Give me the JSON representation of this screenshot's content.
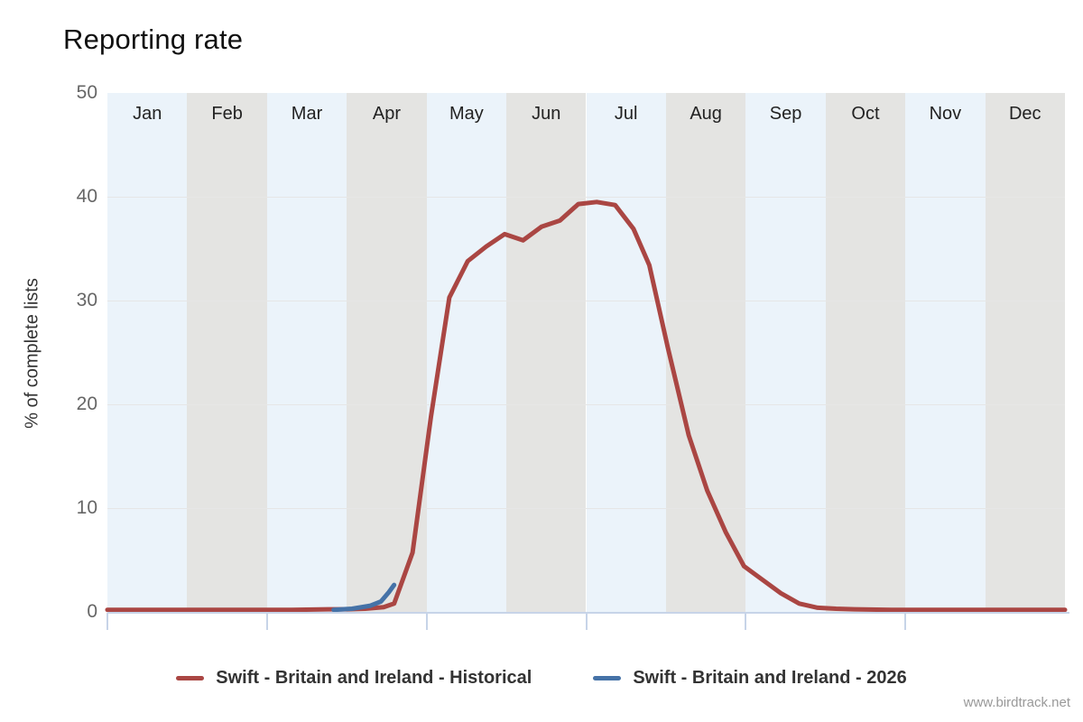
{
  "title": "Reporting rate",
  "watermark": "www.birdtrack.net",
  "y_axis": {
    "label": "% of complete lists",
    "ticks": [
      0,
      10,
      20,
      30,
      40,
      50
    ],
    "max": 50
  },
  "months": [
    "Jan",
    "Feb",
    "Mar",
    "Apr",
    "May",
    "Jun",
    "Jul",
    "Aug",
    "Sep",
    "Oct",
    "Nov",
    "Dec"
  ],
  "colors": {
    "band_blue": "#ebf3fa",
    "band_gray": "#e4e4e2",
    "gridline": "#e6e6e6",
    "axis_line": "#c7d4e8",
    "historical_series": "#AA4643",
    "current_year_series": "#4572A7"
  },
  "chart_data": {
    "type": "line",
    "title": "Reporting rate",
    "xlabel": "",
    "ylabel": "% of complete lists",
    "ylim": [
      0,
      50
    ],
    "x_unit": "day_of_year",
    "x_range": [
      0,
      364
    ],
    "x_band_categories": [
      "Jan",
      "Feb",
      "Mar",
      "Apr",
      "May",
      "Jun",
      "Jul",
      "Aug",
      "Sep",
      "Oct",
      "Nov",
      "Dec"
    ],
    "x_tick_positions_months": [
      "Jan",
      "Mar",
      "May",
      "Jul",
      "Sep",
      "Nov"
    ],
    "grid": true,
    "legend_position": "bottom",
    "series": [
      {
        "name": "Swift - Britain and Ireland - Historical",
        "color": "#AA4643",
        "points": [
          [
            0,
            0.2
          ],
          [
            14,
            0.2
          ],
          [
            28,
            0.2
          ],
          [
            42,
            0.2
          ],
          [
            56,
            0.2
          ],
          [
            70,
            0.2
          ],
          [
            84,
            0.25
          ],
          [
            91,
            0.25
          ],
          [
            98,
            0.3
          ],
          [
            105,
            0.45
          ],
          [
            109,
            0.8
          ],
          [
            116,
            5.7
          ],
          [
            123,
            18.8
          ],
          [
            130,
            30.3
          ],
          [
            137,
            33.8
          ],
          [
            144,
            35.2
          ],
          [
            151,
            36.4
          ],
          [
            158,
            35.8
          ],
          [
            165,
            37.1
          ],
          [
            172,
            37.7
          ],
          [
            179,
            39.3
          ],
          [
            186,
            39.5
          ],
          [
            193,
            39.2
          ],
          [
            200,
            36.9
          ],
          [
            206,
            33.4
          ],
          [
            213,
            25.5
          ],
          [
            221,
            17.0
          ],
          [
            228,
            11.7
          ],
          [
            235,
            7.7
          ],
          [
            242,
            4.4
          ],
          [
            249,
            3.1
          ],
          [
            256,
            1.8
          ],
          [
            263,
            0.8
          ],
          [
            270,
            0.4
          ],
          [
            277,
            0.3
          ],
          [
            284,
            0.25
          ],
          [
            298,
            0.2
          ],
          [
            312,
            0.2
          ],
          [
            326,
            0.2
          ],
          [
            340,
            0.2
          ],
          [
            354,
            0.2
          ],
          [
            364,
            0.2
          ]
        ]
      },
      {
        "name": "Swift - Britain and Ireland - 2026",
        "color": "#4572A7",
        "points": [
          [
            86,
            0.2
          ],
          [
            93,
            0.3
          ],
          [
            100,
            0.6
          ],
          [
            104,
            1.0
          ],
          [
            107,
            1.9
          ],
          [
            109,
            2.6
          ]
        ]
      }
    ]
  }
}
